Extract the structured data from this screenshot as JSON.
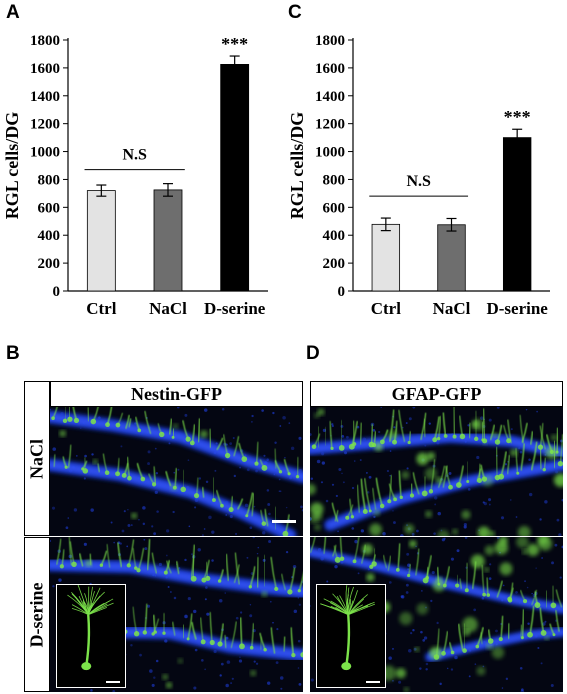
{
  "panels": {
    "a": "A",
    "b": "B",
    "c": "C",
    "d": "D"
  },
  "chart_data": [
    {
      "type": "bar",
      "panel": "A",
      "categories": [
        "Ctrl",
        "NaCl",
        "D-serine"
      ],
      "values": [
        720,
        725,
        1625
      ],
      "errors": [
        40,
        45,
        60
      ],
      "bar_colors": [
        "#e3e3e3",
        "#6e6e6e",
        "#000000"
      ],
      "ylabel": "RGL cells/DG",
      "ylim": [
        0,
        1800
      ],
      "yticks": [
        0,
        200,
        400,
        600,
        800,
        1000,
        1200,
        1400,
        1600,
        1800
      ],
      "significance": {
        "bar": 2,
        "label": "***"
      },
      "ns": {
        "from": 0,
        "to": 1,
        "y": 870,
        "label": "N.S"
      },
      "grid": false
    },
    {
      "type": "bar",
      "panel": "C",
      "categories": [
        "Ctrl",
        "NaCl",
        "D-serine"
      ],
      "values": [
        478,
        475,
        1100
      ],
      "errors": [
        45,
        45,
        60
      ],
      "bar_colors": [
        "#e3e3e3",
        "#6e6e6e",
        "#000000"
      ],
      "ylabel": "RGL cells/DG",
      "ylim": [
        0,
        1800
      ],
      "yticks": [
        0,
        200,
        400,
        600,
        800,
        1000,
        1200,
        1400,
        1600,
        1800
      ],
      "significance": {
        "bar": 2,
        "label": "***"
      },
      "ns": {
        "from": 0,
        "to": 1,
        "y": 680,
        "label": "N.S"
      },
      "grid": false
    }
  ],
  "images": {
    "nestin_header": "Nestin-GFP",
    "gfap_header": "GFAP-GFP",
    "row_nacl": "NaCl",
    "row_dserine": "D-serine",
    "colors": {
      "nuclei": "#1f3fe0",
      "gfp": "#7ce34a",
      "background": "#040612"
    }
  }
}
